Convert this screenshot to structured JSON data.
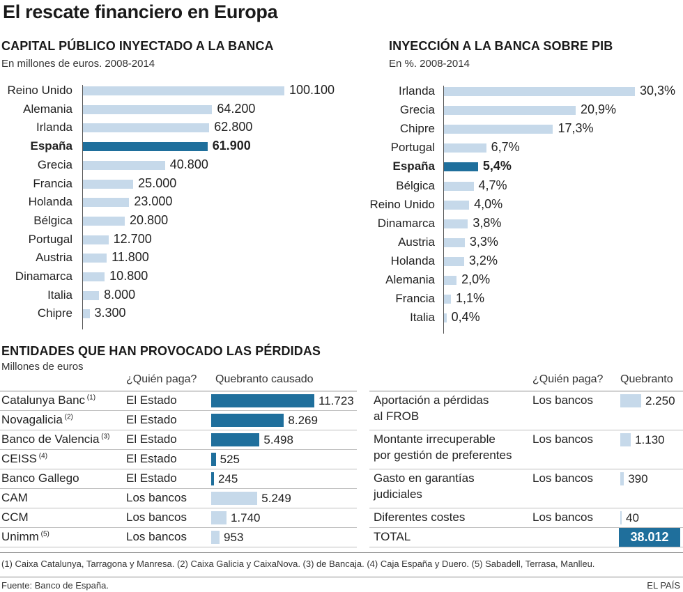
{
  "title": "El rescate financiero en Europa",
  "chart_data": [
    {
      "type": "bar",
      "orientation": "horizontal",
      "title": "CAPITAL PÚBLICO INYECTADO A LA BANCA",
      "subtitle": "En millones de euros. 2008-2014",
      "categories": [
        "Reino Unido",
        "Alemania",
        "Irlanda",
        "España",
        "Grecia",
        "Francia",
        "Holanda",
        "Bélgica",
        "Portugal",
        "Austria",
        "Dinamarca",
        "Italia",
        "Chipre"
      ],
      "values": [
        100100,
        64200,
        62800,
        61900,
        40800,
        25000,
        23000,
        20800,
        12700,
        11800,
        10800,
        8000,
        3300
      ],
      "value_labels": [
        "100.100",
        "64.200",
        "62.800",
        "61.900",
        "40.800",
        "25.000",
        "23.000",
        "20.800",
        "12.700",
        "11.800",
        "10.800",
        "8.000",
        "3.300"
      ],
      "highlight": "España",
      "colors": {
        "bar": "#c6d9ea",
        "highlight": "#1f6f9c"
      }
    },
    {
      "type": "bar",
      "orientation": "horizontal",
      "title": "INYECCIÓN A LA BANCA SOBRE PIB",
      "subtitle": "En %. 2008-2014",
      "categories": [
        "Irlanda",
        "Grecia",
        "Chipre",
        "Portugal",
        "España",
        "Bélgica",
        "Reino Unido",
        "Dinamarca",
        "Austria",
        "Holanda",
        "Alemania",
        "Francia",
        "Italia"
      ],
      "values": [
        30.3,
        20.9,
        17.3,
        6.7,
        5.4,
        4.7,
        4.0,
        3.8,
        3.3,
        3.2,
        2.0,
        1.1,
        0.4
      ],
      "value_labels": [
        "30,3%",
        "20,9%",
        "17,3%",
        "6,7%",
        "5,4%",
        "4,7%",
        "4,0%",
        "3,8%",
        "3,3%",
        "3,2%",
        "2,0%",
        "1,1%",
        "0,4%"
      ],
      "highlight": "España",
      "colors": {
        "bar": "#c6d9ea",
        "highlight": "#1f6f9c"
      }
    },
    {
      "type": "table",
      "title": "ENTIDADES QUE HAN PROVOCADO LAS PÉRDIDAS",
      "subtitle": "Millones de euros",
      "headers": [
        "¿Quién paga?",
        "Quebranto causado"
      ],
      "rows": [
        {
          "name": "Catalunya Banc",
          "note": "(1)",
          "payer": "El Estado",
          "value": 11723,
          "label": "11.723",
          "state": true
        },
        {
          "name": "Novagalicia",
          "note": "(2)",
          "payer": "El Estado",
          "value": 8269,
          "label": "8.269",
          "state": true
        },
        {
          "name": "Banco de Valencia",
          "note": "(3)",
          "payer": "El Estado",
          "value": 5498,
          "label": "5.498",
          "state": true
        },
        {
          "name": "CEISS",
          "note": "(4)",
          "payer": "El Estado",
          "value": 525,
          "label": "525",
          "state": true
        },
        {
          "name": "Banco Gallego",
          "note": "",
          "payer": "El Estado",
          "value": 245,
          "label": "245",
          "state": true
        },
        {
          "name": "CAM",
          "note": "",
          "payer": "Los bancos",
          "value": 5249,
          "label": "5.249",
          "state": false
        },
        {
          "name": "CCM",
          "note": "",
          "payer": "Los bancos",
          "value": 1740,
          "label": "1.740",
          "state": false
        },
        {
          "name": "Unimm",
          "note": "(5)",
          "payer": "Los bancos",
          "value": 953,
          "label": "953",
          "state": false
        }
      ]
    },
    {
      "type": "table",
      "headers": [
        "¿Quién paga?",
        "Quebranto"
      ],
      "rows": [
        {
          "line1": "Aportación a pérdidas",
          "line2": "al FROB",
          "payer": "Los bancos",
          "value": 2250,
          "label": "2.250"
        },
        {
          "line1": "Montante irrecuperable",
          "line2": "por gestión de preferentes",
          "payer": "Los bancos",
          "value": 1130,
          "label": "1.130"
        },
        {
          "line1": "Gasto en garantías",
          "line2": "judiciales",
          "payer": "Los bancos",
          "value": 390,
          "label": "390"
        },
        {
          "line1": "Diferentes costes",
          "line2": "",
          "payer": "Los bancos",
          "value": 40,
          "label": "40"
        }
      ],
      "total": {
        "label": "TOTAL",
        "value": 38012,
        "value_label": "38.012"
      }
    }
  ],
  "footnote": "(1) Caixa Catalunya, Tarragona y Manresa. (2) Caixa Galicia y CaixaNova. (3) de Bancaja. (4) Caja España y Duero. (5) Sabadell, Terrasa, Manlleu.",
  "source": "Fuente: Banco de España.",
  "brand": "EL PAÍS"
}
